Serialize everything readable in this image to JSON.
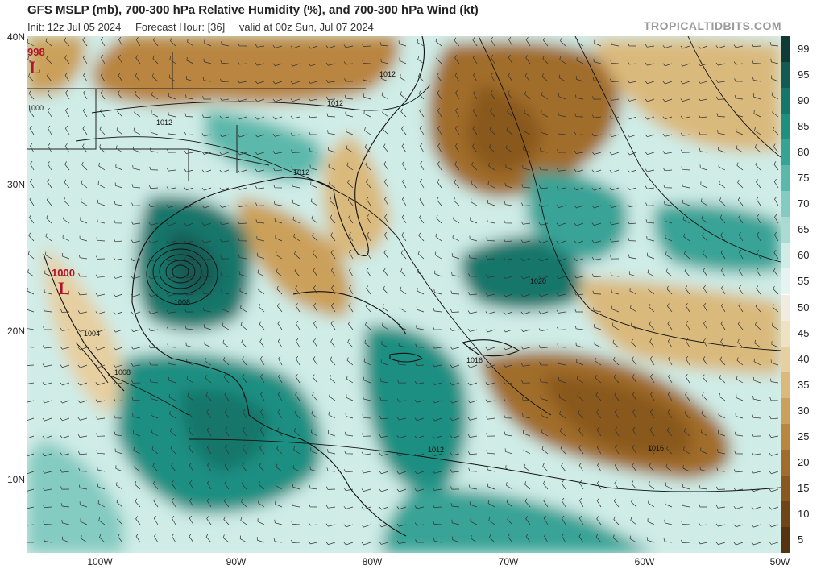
{
  "header": {
    "title": "GFS MSLP (mb), 700-300 hPa Relative Humidity (%), and 700-300 hPa Wind (kt)",
    "init": "Init: 12z Jul 05 2024",
    "forecast_hour": "Forecast Hour: [36]",
    "valid": "valid at 00z Sun, Jul 07 2024",
    "brand": "TROPICALTIDBITS.COM"
  },
  "map": {
    "lat_labels": [
      "40N",
      "30N",
      "20N",
      "10N"
    ],
    "lon_labels": [
      "100W",
      "90W",
      "80W",
      "70W",
      "60W",
      "50W"
    ],
    "lows": [
      {
        "letter": "L",
        "pressure": "998"
      },
      {
        "letter": "L",
        "pressure": "1000"
      }
    ],
    "isobar_labels": [
      "1012",
      "1012",
      "1012",
      "1012",
      "1008",
      "1004",
      "1008",
      "1016",
      "1012",
      "1020",
      "1016",
      "1000"
    ]
  },
  "colorbar": {
    "labels": [
      "99",
      "95",
      "90",
      "85",
      "80",
      "75",
      "70",
      "65",
      "60",
      "55",
      "50",
      "45",
      "40",
      "35",
      "30",
      "25",
      "20",
      "15",
      "10",
      "5"
    ],
    "colors": [
      "#0f3a36",
      "#125a52",
      "#17766b",
      "#1f8f82",
      "#37a396",
      "#5bb8ab",
      "#84cbc1",
      "#aadbd3",
      "#cfece7",
      "#e6f4f1",
      "#f0ede0",
      "#efe2c2",
      "#e6cfa0",
      "#dab97c",
      "#cba05a",
      "#b9853f",
      "#a16d2c",
      "#89581f",
      "#6f4416",
      "#55330f"
    ]
  }
}
